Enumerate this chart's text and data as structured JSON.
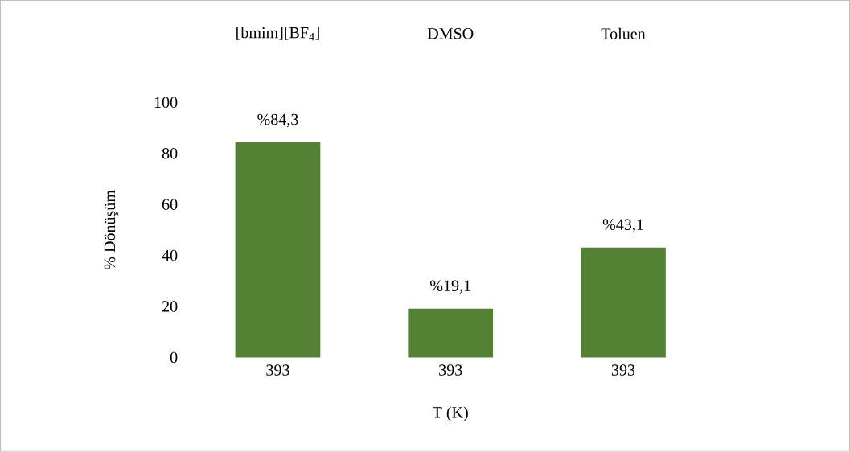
{
  "chart_data": {
    "type": "bar",
    "categories": [
      "393",
      "393",
      "393"
    ],
    "xlabel": "T (K)",
    "ylabel": "% Dönüşüm",
    "ylim": [
      0,
      100
    ],
    "yticks": [
      0,
      20,
      40,
      60,
      80,
      100
    ],
    "annotations": [
      "[bmim][BF$_{4}$]",
      "DMSO",
      "Toluen"
    ],
    "series": [
      {
        "color": "#548235",
        "values": [
          84.3,
          19.1,
          43.1
        ],
        "value_labels": [
          "%84,3",
          "%19,1",
          "%43,1"
        ]
      }
    ]
  }
}
